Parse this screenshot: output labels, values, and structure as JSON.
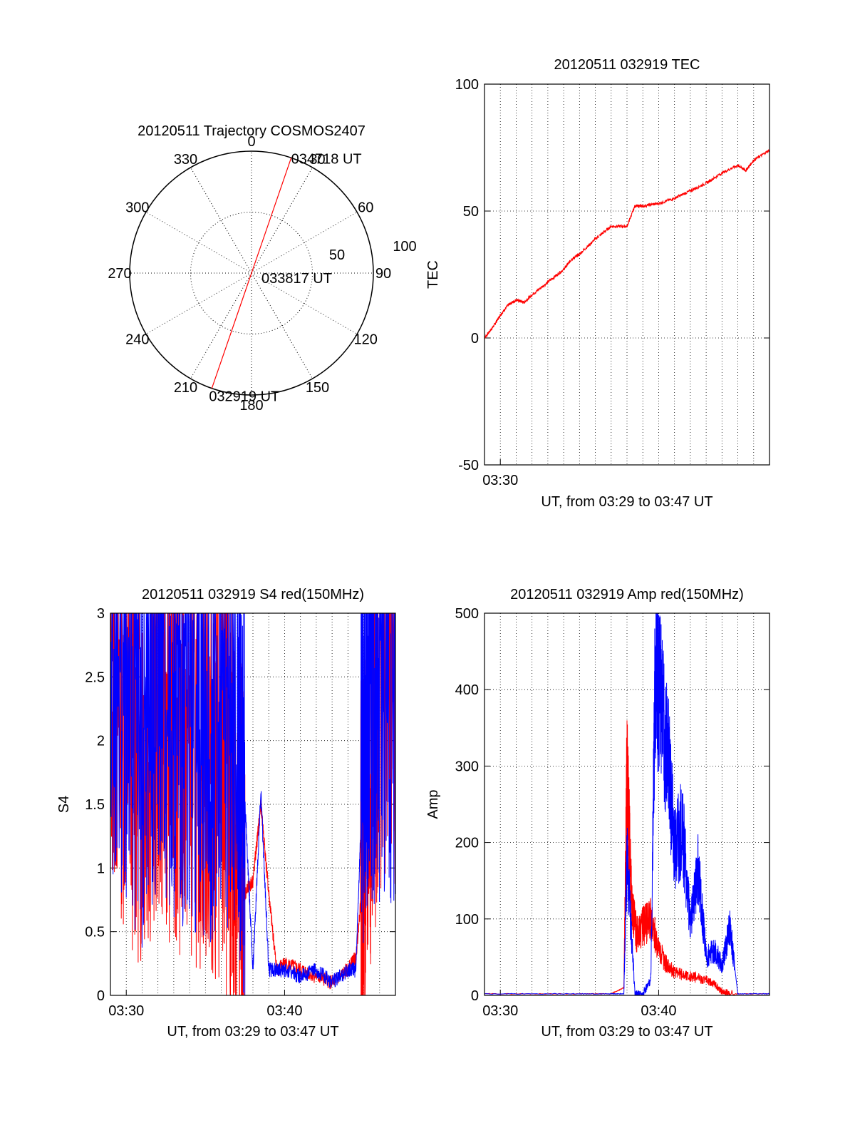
{
  "chart_data": [
    {
      "type": "polar",
      "title": "20120511 Trajectory COSMOS2407",
      "azimuth_labels": [
        "0",
        "30",
        "60",
        "90",
        "120",
        "150",
        "180",
        "210",
        "240",
        "270",
        "300",
        "330"
      ],
      "azimuths": [
        0,
        30,
        60,
        90,
        120,
        150,
        180,
        210,
        240,
        270,
        300,
        330
      ],
      "radial_rings": [
        50,
        100
      ],
      "radial_ring_labels": [
        "50",
        "100"
      ],
      "grid": true,
      "trajectory": {
        "color": "#ff0000",
        "points": [
          {
            "azimuth": 19,
            "zenith": 90,
            "label": "034718 UT"
          },
          {
            "azimuth": 190,
            "zenith": 0,
            "label": "033817 UT"
          },
          {
            "azimuth": 199,
            "zenith": 90,
            "label": "032919 UT"
          }
        ]
      }
    },
    {
      "type": "line",
      "title": "20120511 032919 TEC",
      "xlabel": "UT, from 03:29 to 03:47 UT",
      "ylabel": "TEC",
      "xlim_minutes": [
        29,
        47
      ],
      "ylim": [
        -50,
        100
      ],
      "yticks": [
        "-50",
        "0",
        "50",
        "100"
      ],
      "xticks": [
        "03:30"
      ],
      "grid": true,
      "series": [
        {
          "color": "#ff0000",
          "x_minutes": [
            29.0,
            29.5,
            30.0,
            30.5,
            31.0,
            31.5,
            32.0,
            33.0,
            34.0,
            34.5,
            35.0,
            36.0,
            37.0,
            38.0,
            38.5,
            39.0,
            40.0,
            41.0,
            42.0,
            43.0,
            44.0,
            45.0,
            45.5,
            46.0,
            47.0
          ],
          "values": [
            0,
            4,
            9,
            13,
            15,
            14,
            17,
            22,
            27,
            31,
            33,
            39,
            44,
            44,
            52,
            52,
            53,
            55,
            58,
            61,
            65,
            68,
            66,
            70,
            74
          ]
        }
      ]
    },
    {
      "type": "line",
      "title": "20120511 032919 S4 red(150MHz)",
      "xlabel": "UT, from 03:29 to 03:47 UT",
      "ylabel": "S4",
      "xlim_minutes": [
        29,
        47
      ],
      "ylim": [
        0,
        3
      ],
      "yticks": [
        "0",
        "0.5",
        "1",
        "1.5",
        "2",
        "2.5",
        "3"
      ],
      "xticks": [
        "03:30",
        "03:40"
      ],
      "grid": true,
      "series": [
        {
          "color": "#ff0000",
          "x_minutes": [
            29.0,
            30.0,
            31.0,
            32.0,
            33.0,
            34.0,
            35.0,
            36.0,
            36.5,
            37.0,
            37.5,
            38.0,
            38.5,
            39.0,
            39.5,
            40.0,
            41.0,
            42.0,
            43.0,
            44.0,
            44.5,
            45.0,
            45.5,
            46.0,
            47.0
          ],
          "values": [
            2.6,
            2.2,
            1.9,
            2.3,
            2.1,
            2.0,
            1.9,
            1.7,
            1.5,
            1.2,
            0.8,
            0.9,
            1.5,
            0.8,
            0.2,
            0.25,
            0.2,
            0.15,
            0.1,
            0.2,
            0.3,
            1.0,
            2.0,
            2.5,
            2.6
          ]
        },
        {
          "color": "#0000ff",
          "x_minutes": [
            29.0,
            30.0,
            31.0,
            32.0,
            33.0,
            34.0,
            35.0,
            36.0,
            37.0,
            37.5,
            38.0,
            38.5,
            39.0,
            39.5,
            40.0,
            41.0,
            42.0,
            43.0,
            44.0,
            44.5,
            45.0,
            45.5,
            46.0,
            47.0
          ],
          "values": [
            2.7,
            2.4,
            2.0,
            2.5,
            2.2,
            2.3,
            2.1,
            2.2,
            2.0,
            1.5,
            0.2,
            1.6,
            0.2,
            0.2,
            0.2,
            0.15,
            0.2,
            0.1,
            0.2,
            0.2,
            2.0,
            2.4,
            2.3,
            2.5
          ]
        }
      ]
    },
    {
      "type": "line",
      "title": "20120511 032919 Amp red(150MHz)",
      "xlabel": "UT, from 03:29 to 03:47 UT",
      "ylabel": "Amp",
      "xlim_minutes": [
        29,
        47
      ],
      "ylim": [
        0,
        500
      ],
      "yticks": [
        "0",
        "100",
        "200",
        "300",
        "400",
        "500"
      ],
      "xticks": [
        "03:30",
        "03:40"
      ],
      "grid": true,
      "series": [
        {
          "color": "#ff0000",
          "x_minutes": [
            29.0,
            35.0,
            37.0,
            37.8,
            38.0,
            38.3,
            38.6,
            39.0,
            39.5,
            40.0,
            40.5,
            41.0,
            42.0,
            43.0,
            43.5,
            44.0,
            44.5,
            47.0
          ],
          "values": [
            2,
            2,
            2,
            10,
            300,
            120,
            80,
            90,
            100,
            60,
            40,
            30,
            25,
            20,
            15,
            5,
            2,
            2
          ]
        },
        {
          "color": "#0000ff",
          "x_minutes": [
            29.0,
            35.0,
            37.0,
            37.8,
            38.0,
            38.5,
            39.0,
            39.5,
            39.8,
            40.2,
            40.6,
            41.0,
            41.5,
            42.0,
            42.5,
            43.0,
            43.5,
            44.0,
            44.5,
            45.0,
            47.0
          ],
          "values": [
            2,
            2,
            2,
            2,
            180,
            2,
            2,
            20,
            440,
            370,
            310,
            190,
            220,
            90,
            170,
            50,
            60,
            40,
            90,
            2,
            2
          ]
        }
      ]
    }
  ]
}
